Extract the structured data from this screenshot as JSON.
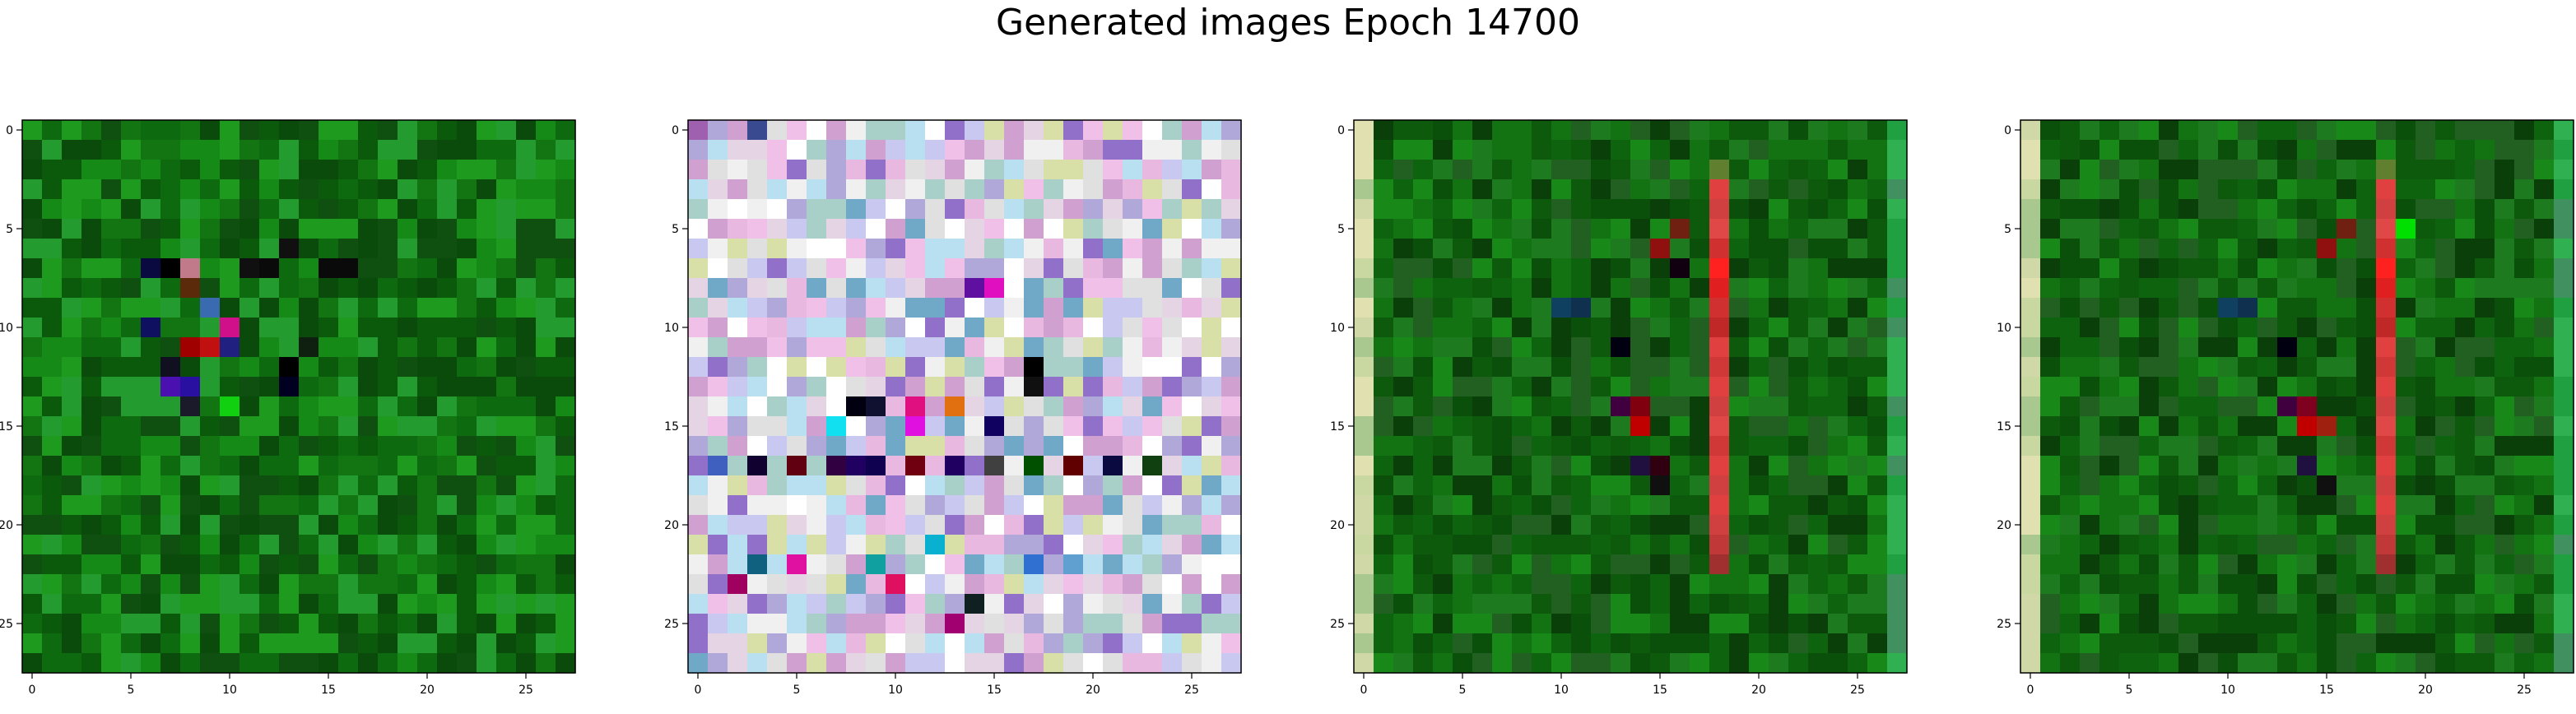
{
  "title": "Generated images Epoch 14700",
  "chart_data": {
    "type": "heatmap",
    "title": "Generated images Epoch 14700",
    "image_shape": [
      28,
      28
    ],
    "xlim": [
      -0.5,
      27.5
    ],
    "ylim": [
      27.5,
      -0.5
    ],
    "xticks": [
      0,
      5,
      10,
      15,
      20,
      25
    ],
    "yticks": [
      0,
      5,
      10,
      15,
      20,
      25
    ],
    "grid": false,
    "panels": [
      {
        "style": "green-noise",
        "palette": [
          "#0b5a0b",
          "#0e6a0e",
          "#127512",
          "#0a4a0a",
          "#168a16",
          "#1e9b1e",
          "#0f4f0f",
          "#239b2e"
        ],
        "highlights": [
          [
            7,
            6,
            "#0a0a40"
          ],
          [
            7,
            7,
            "#000000"
          ],
          [
            7,
            8,
            "#c07a8a"
          ],
          [
            8,
            8,
            "#5a2a0a"
          ],
          [
            9,
            9,
            "#3a6ab0"
          ],
          [
            10,
            6,
            "#101060"
          ],
          [
            11,
            8,
            "#a00000"
          ],
          [
            11,
            9,
            "#c01010"
          ],
          [
            10,
            10,
            "#d0108a"
          ],
          [
            11,
            10,
            "#202080"
          ],
          [
            12,
            7,
            "#101020"
          ],
          [
            13,
            7,
            "#4a10b0"
          ],
          [
            13,
            8,
            "#2a10a0"
          ],
          [
            12,
            13,
            "#000000"
          ],
          [
            13,
            13,
            "#000020"
          ],
          [
            11,
            14,
            "#102010"
          ],
          [
            14,
            10,
            "#10d010"
          ],
          [
            14,
            8,
            "#1a1a2a"
          ],
          [
            7,
            11,
            "#101010"
          ],
          [
            7,
            12,
            "#0a0a0a"
          ],
          [
            6,
            13,
            "#101010"
          ],
          [
            7,
            15,
            "#0a0a0a"
          ],
          [
            7,
            16,
            "#0a0a0a"
          ]
        ]
      },
      {
        "style": "pastel-noise",
        "palette": [
          "#e4d4e4",
          "#b0a8d8",
          "#e8b8e0",
          "#a8d0c8",
          "#d8e0a8",
          "#f0f0f0",
          "#c8c8f0",
          "#f0c0e8",
          "#b8e0f0",
          "#e0e0e0",
          "#70a8c8",
          "#d0a0d0",
          "#9070c8",
          "#ffffff"
        ],
        "highlights": [
          [
            0,
            0,
            "#a060b0"
          ],
          [
            0,
            3,
            "#3a4a90"
          ],
          [
            8,
            14,
            "#6010a0"
          ],
          [
            8,
            15,
            "#e010c0"
          ],
          [
            12,
            17,
            "#000000"
          ],
          [
            13,
            17,
            "#101010"
          ],
          [
            14,
            8,
            "#000010"
          ],
          [
            14,
            9,
            "#101030"
          ],
          [
            14,
            11,
            "#e01080"
          ],
          [
            14,
            13,
            "#e07010"
          ],
          [
            15,
            15,
            "#100060"
          ],
          [
            15,
            11,
            "#e010e0"
          ],
          [
            15,
            7,
            "#10e0f0"
          ],
          [
            17,
            1,
            "#4060c0"
          ],
          [
            17,
            3,
            "#100030"
          ],
          [
            17,
            5,
            "#600010"
          ],
          [
            17,
            7,
            "#300040"
          ],
          [
            17,
            8,
            "#200060"
          ],
          [
            17,
            9,
            "#100050"
          ],
          [
            17,
            11,
            "#700010"
          ],
          [
            17,
            13,
            "#200060"
          ],
          [
            17,
            15,
            "#404040"
          ],
          [
            17,
            17,
            "#005000"
          ],
          [
            17,
            19,
            "#600000"
          ],
          [
            17,
            21,
            "#0a0a40"
          ],
          [
            17,
            23,
            "#104010"
          ],
          [
            23,
            2,
            "#a00060"
          ],
          [
            23,
            10,
            "#e01060"
          ],
          [
            24,
            14,
            "#102020"
          ],
          [
            25,
            13,
            "#a00070"
          ],
          [
            22,
            3,
            "#106080"
          ],
          [
            22,
            5,
            "#e010a0"
          ],
          [
            22,
            9,
            "#10a0a0"
          ],
          [
            22,
            17,
            "#3070d0"
          ],
          [
            22,
            19,
            "#60a0d0"
          ],
          [
            21,
            12,
            "#0ab0d0"
          ]
        ]
      },
      {
        "style": "green-stripe",
        "palette": [
          "#0a4f0a",
          "#0e630e",
          "#137313",
          "#0a3f0a",
          "#188818",
          "#0d5a0d",
          "#1e7a1e",
          "#226022"
        ],
        "highlights": [
          [
            3,
            18,
            "#e04040"
          ],
          [
            4,
            18,
            "#d04040"
          ],
          [
            5,
            18,
            "#e04848"
          ],
          [
            6,
            18,
            "#d03030"
          ],
          [
            7,
            18,
            "#ff2020"
          ],
          [
            8,
            18,
            "#e02020"
          ],
          [
            9,
            18,
            "#d03030"
          ],
          [
            10,
            18,
            "#c02828"
          ],
          [
            11,
            18,
            "#e04040"
          ],
          [
            12,
            18,
            "#d03838"
          ],
          [
            13,
            18,
            "#e04040"
          ],
          [
            14,
            18,
            "#d04040"
          ],
          [
            15,
            18,
            "#e04848"
          ],
          [
            16,
            18,
            "#d03838"
          ],
          [
            17,
            18,
            "#e04040"
          ],
          [
            18,
            18,
            "#d04040"
          ],
          [
            19,
            18,
            "#e04040"
          ],
          [
            20,
            18,
            "#d04040"
          ],
          [
            21,
            18,
            "#c03838"
          ],
          [
            22,
            18,
            "#a03030"
          ],
          [
            14,
            14,
            "#800010"
          ],
          [
            15,
            14,
            "#c00000"
          ],
          [
            14,
            13,
            "#400040"
          ],
          [
            17,
            14,
            "#201040"
          ],
          [
            18,
            15,
            "#101010"
          ],
          [
            17,
            15,
            "#300010"
          ],
          [
            9,
            10,
            "#104060"
          ],
          [
            9,
            11,
            "#103050"
          ],
          [
            11,
            13,
            "#000010"
          ],
          [
            2,
            18,
            "#608030"
          ],
          [
            5,
            16,
            "#702010"
          ],
          [
            6,
            15,
            "#901010"
          ],
          [
            7,
            16,
            "#100010"
          ]
        ]
      },
      {
        "style": "green-stripe",
        "palette": [
          "#0a4f0a",
          "#0e630e",
          "#137313",
          "#0a3f0a",
          "#188818",
          "#0d5a0d",
          "#1e7a1e",
          "#226022"
        ],
        "highlights": [
          [
            3,
            18,
            "#e04040"
          ],
          [
            4,
            18,
            "#d04040"
          ],
          [
            5,
            18,
            "#e04848"
          ],
          [
            6,
            18,
            "#d03030"
          ],
          [
            7,
            18,
            "#ff2020"
          ],
          [
            8,
            18,
            "#e02020"
          ],
          [
            9,
            18,
            "#d03030"
          ],
          [
            10,
            18,
            "#c02828"
          ],
          [
            11,
            18,
            "#e04040"
          ],
          [
            12,
            18,
            "#d03838"
          ],
          [
            13,
            18,
            "#e04040"
          ],
          [
            14,
            18,
            "#d04040"
          ],
          [
            15,
            18,
            "#e04848"
          ],
          [
            16,
            18,
            "#d03838"
          ],
          [
            17,
            18,
            "#e04040"
          ],
          [
            18,
            18,
            "#d04040"
          ],
          [
            19,
            18,
            "#e04040"
          ],
          [
            20,
            18,
            "#d04040"
          ],
          [
            21,
            18,
            "#c03838"
          ],
          [
            22,
            18,
            "#a03030"
          ],
          [
            14,
            14,
            "#800020"
          ],
          [
            15,
            14,
            "#c00000"
          ],
          [
            14,
            13,
            "#400040"
          ],
          [
            15,
            15,
            "#a02010"
          ],
          [
            17,
            14,
            "#201040"
          ],
          [
            18,
            15,
            "#101010"
          ],
          [
            9,
            10,
            "#104060"
          ],
          [
            9,
            11,
            "#103050"
          ],
          [
            11,
            13,
            "#000010"
          ],
          [
            2,
            18,
            "#608030"
          ],
          [
            5,
            16,
            "#702010"
          ],
          [
            6,
            15,
            "#901010"
          ],
          [
            5,
            19,
            "#00e000"
          ]
        ]
      }
    ]
  }
}
